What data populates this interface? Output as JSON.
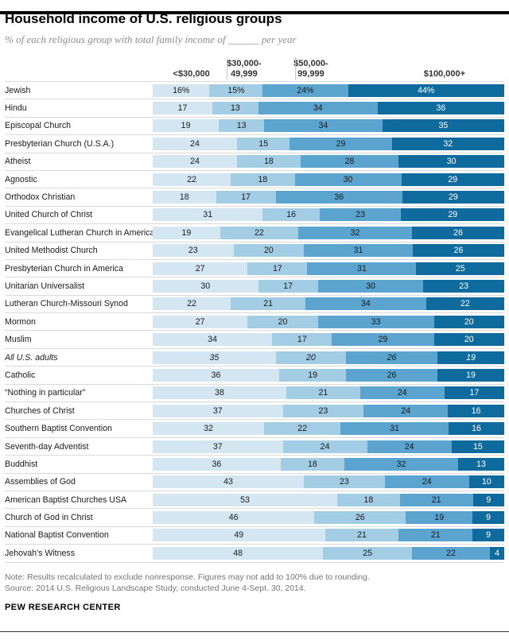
{
  "header": {
    "title": "Household income of U.S. religious groups",
    "subtitle": "% of each religious group with total family income of ______ per year"
  },
  "chart_data": {
    "type": "bar",
    "orientation": "horizontal-stacked",
    "title": "Household income of U.S. religious groups",
    "subtitle": "% of each religious group with total family income of ______ per year",
    "unit": "%",
    "legend_position": "top-column-headers",
    "series_labels": [
      "<$30,000",
      "$30,000-49,999",
      "$50,000-99,999",
      "$100,000+"
    ],
    "column_headers": [
      "<$30,000",
      "$30,000-\n49,999",
      "$50,000-\n99,999",
      "$100,000+"
    ],
    "colors": [
      "#d4e6f2",
      "#a3cde4",
      "#5ba4cf",
      "#0f6a9d"
    ],
    "first_row_value_suffix": "%",
    "rows": [
      {
        "label": "Jewish",
        "values": [
          16,
          15,
          24,
          44
        ]
      },
      {
        "label": "Hindu",
        "values": [
          17,
          13,
          34,
          36
        ]
      },
      {
        "label": "Episcopal Church",
        "values": [
          19,
          13,
          34,
          35
        ]
      },
      {
        "label": "Presbyterian Church (U.S.A.)",
        "values": [
          24,
          15,
          29,
          32
        ]
      },
      {
        "label": "Atheist",
        "values": [
          24,
          18,
          28,
          30
        ]
      },
      {
        "label": "Agnostic",
        "values": [
          22,
          18,
          30,
          29
        ]
      },
      {
        "label": "Orthodox Christian",
        "values": [
          18,
          17,
          36,
          29
        ]
      },
      {
        "label": "United Church of Christ",
        "values": [
          31,
          16,
          23,
          29
        ]
      },
      {
        "label": "Evangelical Lutheran Church in America",
        "values": [
          19,
          22,
          32,
          26
        ]
      },
      {
        "label": "United Methodist Church",
        "values": [
          23,
          20,
          31,
          26
        ]
      },
      {
        "label": "Presbyterian Church in America",
        "values": [
          27,
          17,
          31,
          25
        ]
      },
      {
        "label": "Unitarian Universalist",
        "values": [
          30,
          17,
          30,
          23
        ]
      },
      {
        "label": "Lutheran Church-Missouri Synod",
        "values": [
          22,
          21,
          34,
          22
        ]
      },
      {
        "label": "Mormon",
        "values": [
          27,
          20,
          33,
          20
        ]
      },
      {
        "label": "Muslim",
        "values": [
          34,
          17,
          29,
          20
        ]
      },
      {
        "label": "All U.S. adults",
        "values": [
          35,
          20,
          26,
          19
        ],
        "italic": true
      },
      {
        "label": "Catholic",
        "values": [
          36,
          19,
          26,
          19
        ]
      },
      {
        "label": "“Nothing in particular”",
        "values": [
          38,
          21,
          24,
          17
        ]
      },
      {
        "label": "Churches of Christ",
        "values": [
          37,
          23,
          24,
          16
        ]
      },
      {
        "label": "Southern Baptist Convention",
        "values": [
          32,
          22,
          31,
          16
        ]
      },
      {
        "label": "Seventh-day Adventist",
        "values": [
          37,
          24,
          24,
          15
        ]
      },
      {
        "label": "Buddhist",
        "values": [
          36,
          18,
          32,
          13
        ]
      },
      {
        "label": "Assemblies of God",
        "values": [
          43,
          23,
          24,
          10
        ]
      },
      {
        "label": "American Baptist Churches USA",
        "values": [
          53,
          18,
          21,
          9
        ]
      },
      {
        "label": "Church of God in Christ",
        "values": [
          46,
          26,
          19,
          9
        ]
      },
      {
        "label": "National Baptist Convention",
        "values": [
          49,
          21,
          21,
          9
        ]
      },
      {
        "label": "Jehovah's Witness",
        "values": [
          48,
          25,
          22,
          4
        ]
      }
    ]
  },
  "footer": {
    "note": "Note: Results recalculated to exclude nonresponse. Figures may not add to 100% due to rounding.",
    "source": "Source: 2014 U.S. Religious Landscape Study, conducted June 4-Sept. 30, 2014.",
    "brand": "PEW RESEARCH CENTER"
  }
}
